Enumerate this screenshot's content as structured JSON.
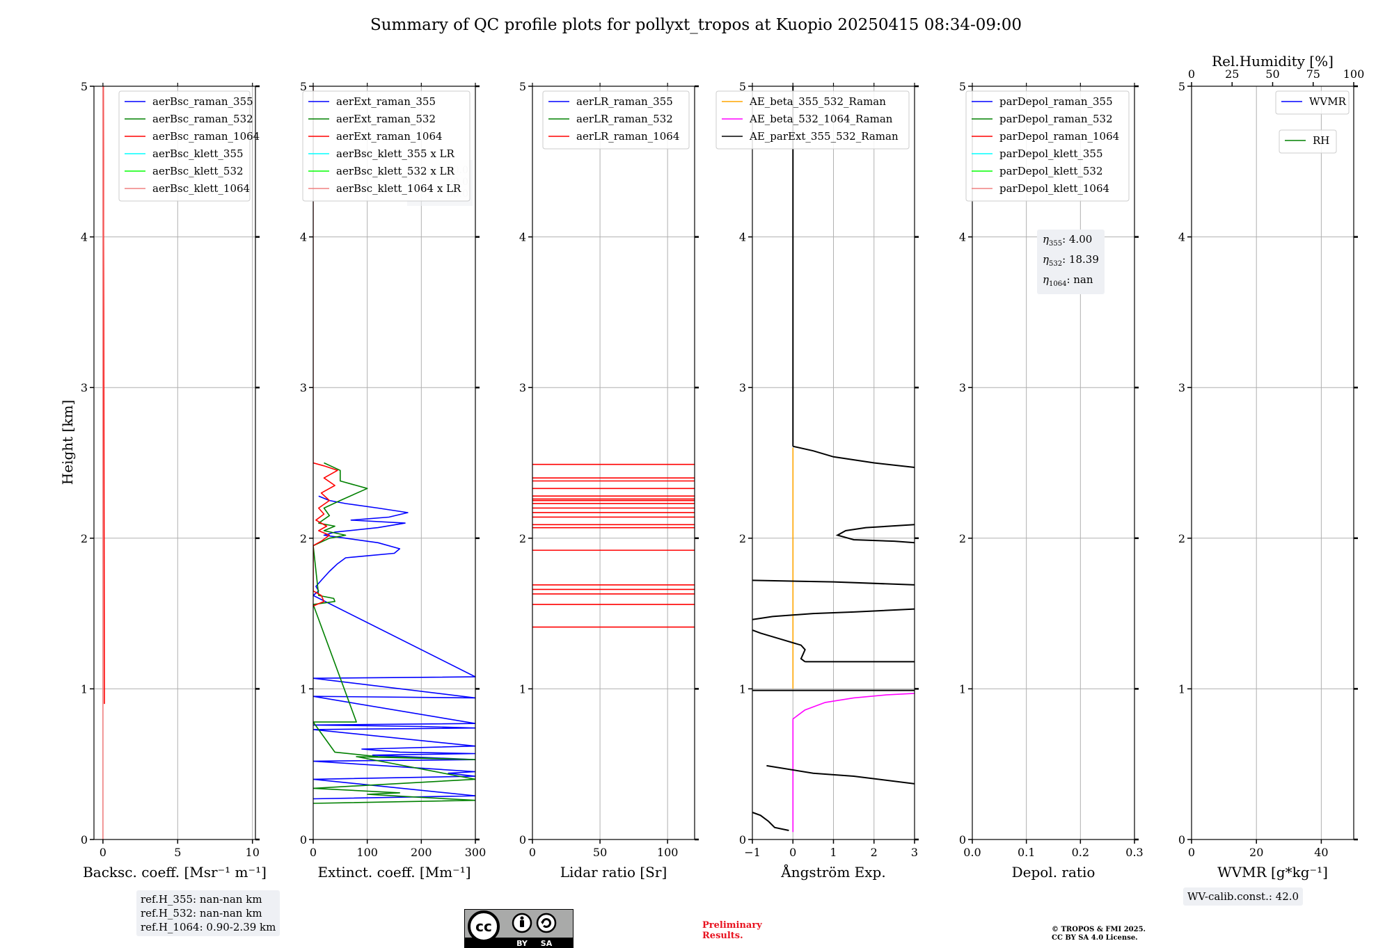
{
  "figure": {
    "title": "Summary of QC profile plots for pollyxt_tropos at Kuopio 20250415 08:34-09:00",
    "ylabel": "Height [km]"
  },
  "notes": {
    "refH": [
      "ref.H_355: nan-nan km",
      "ref.H_532: nan-nan km",
      "ref.H_1064: 0.90-2.39 km"
    ],
    "wv_calib": "WV-calib.const.: 42.0",
    "preliminary": [
      "Preliminary",
      "Results."
    ],
    "copyright": [
      "© TROPOS & FMI 2025.",
      "CC BY SA 4.0 License."
    ],
    "cc_badge": {
      "cc": "cc",
      "by": "BY",
      "sa": "SA"
    },
    "eta": [
      {
        "sym": "η",
        "sub": "355",
        "val": ": 4.00"
      },
      {
        "sym": "η",
        "sub": "532",
        "val": ": 18.39"
      },
      {
        "sym": "η",
        "sub": "1064",
        "val": ": nan"
      }
    ],
    "ext_ghost_lines": [
      "0.0",
      "00.0",
      "00.0"
    ]
  },
  "colors": {
    "blue": "#0000ff",
    "green": "#008000",
    "red": "#ff0000",
    "cyan": "#00ffff",
    "lime": "#00ff00",
    "salmon": "#f08080",
    "orange": "#ffa500",
    "magenta": "#ff00ff",
    "black": "#000000"
  },
  "chart_data": [
    {
      "type": "line",
      "xlabel": "Backsc. coeff. [Msr⁻¹ m⁻¹]",
      "xlim": [
        -0.6,
        10.2
      ],
      "ylim": [
        0,
        5
      ],
      "xticks": [
        0,
        5,
        10
      ],
      "xtick_labels": [
        "0",
        "5",
        "10"
      ],
      "yticks": [
        0,
        1,
        2,
        3,
        4,
        5
      ],
      "legend_position": "top-right",
      "series": [
        {
          "name": "aerBsc_raman_355",
          "color": "#0000ff",
          "points": []
        },
        {
          "name": "aerBsc_raman_532",
          "color": "#008000",
          "points": []
        },
        {
          "name": "aerBsc_raman_1064",
          "color": "#ff0000",
          "points": [
            [
              0.1,
              0.9
            ],
            [
              0.1,
              1.0
            ],
            [
              0.09,
              1.5
            ],
            [
              0.08,
              2.0
            ],
            [
              0.07,
              2.5
            ],
            [
              0.06,
              3.0
            ],
            [
              0.05,
              3.5
            ],
            [
              0.04,
              4.0
            ],
            [
              0.04,
              4.5
            ],
            [
              0.03,
              5.0
            ]
          ]
        },
        {
          "name": "aerBsc_klett_355",
          "color": "#00ffff",
          "points": []
        },
        {
          "name": "aerBsc_klett_532",
          "color": "#00ff00",
          "points": []
        },
        {
          "name": "aerBsc_klett_1064",
          "color": "#f08080",
          "points": [
            [
              0.0,
              0.0
            ],
            [
              0.0,
              5.0
            ]
          ]
        }
      ]
    },
    {
      "type": "line",
      "xlabel": "Extinct. coeff. [Mm⁻¹]",
      "xlim": [
        0,
        300
      ],
      "ylim": [
        0,
        5
      ],
      "xticks": [
        0,
        100,
        200,
        300
      ],
      "xtick_labels": [
        "0",
        "100",
        "200",
        "300"
      ],
      "yticks": [
        0,
        1,
        2,
        3,
        4,
        5
      ],
      "legend_position": "top-right",
      "series": [
        {
          "name": "aerExt_raman_355",
          "color": "#0000ff",
          "points": [
            [
              0,
              0.27
            ],
            [
              300,
              0.29
            ],
            [
              0,
              0.4
            ],
            [
              300,
              0.42
            ],
            [
              250,
              0.44
            ],
            [
              300,
              0.45
            ],
            [
              0,
              0.52
            ],
            [
              300,
              0.53
            ],
            [
              110,
              0.56
            ],
            [
              300,
              0.57
            ],
            [
              160,
              0.58
            ],
            [
              90,
              0.6
            ],
            [
              300,
              0.62
            ],
            [
              0,
              0.73
            ],
            [
              300,
              0.74
            ],
            [
              200,
              0.75
            ],
            [
              0,
              0.76
            ],
            [
              300,
              0.77
            ],
            [
              0,
              0.95
            ],
            [
              300,
              0.94
            ],
            [
              0,
              1.07
            ],
            [
              300,
              1.08
            ],
            [
              0,
              1.62
            ],
            [
              10,
              1.65
            ],
            [
              5,
              1.68
            ],
            [
              15,
              1.72
            ],
            [
              30,
              1.78
            ],
            [
              45,
              1.83
            ],
            [
              60,
              1.87
            ],
            [
              90,
              1.88
            ],
            [
              150,
              1.9
            ],
            [
              160,
              1.93
            ],
            [
              120,
              1.97
            ],
            [
              60,
              2.0
            ],
            [
              20,
              2.02
            ],
            [
              40,
              2.04
            ],
            [
              120,
              2.07
            ],
            [
              170,
              2.1
            ],
            [
              70,
              2.12
            ],
            [
              140,
              2.14
            ],
            [
              175,
              2.17
            ],
            [
              120,
              2.2
            ],
            [
              60,
              2.23
            ],
            [
              30,
              2.25
            ],
            [
              10,
              2.28
            ]
          ]
        },
        {
          "name": "aerExt_raman_532",
          "color": "#008000",
          "points": [
            [
              0,
              0.24
            ],
            [
              300,
              0.26
            ],
            [
              200,
              0.28
            ],
            [
              100,
              0.3
            ],
            [
              160,
              0.31
            ],
            [
              0,
              0.34
            ],
            [
              300,
              0.4
            ],
            [
              80,
              0.55
            ],
            [
              300,
              0.53
            ],
            [
              120,
              0.55
            ],
            [
              40,
              0.58
            ],
            [
              0,
              0.78
            ],
            [
              80,
              0.78
            ],
            [
              0,
              1.56
            ],
            [
              40,
              1.58
            ],
            [
              38,
              1.6
            ],
            [
              10,
              1.62
            ],
            [
              0,
              1.95
            ],
            [
              30,
              2.0
            ],
            [
              60,
              2.02
            ],
            [
              20,
              2.05
            ],
            [
              40,
              2.08
            ],
            [
              10,
              2.1
            ],
            [
              30,
              2.15
            ],
            [
              20,
              2.2
            ],
            [
              50,
              2.25
            ],
            [
              100,
              2.33
            ],
            [
              50,
              2.38
            ],
            [
              50,
              2.45
            ],
            [
              20,
              2.5
            ]
          ]
        },
        {
          "name": "aerExt_raman_1064",
          "color": "#ff0000",
          "points": [
            [
              0,
              1.55
            ],
            [
              20,
              1.58
            ],
            [
              15,
              1.62
            ],
            [
              0,
              1.65
            ],
            [
              0,
              1.95
            ],
            [
              15,
              1.98
            ],
            [
              30,
              2.02
            ],
            [
              10,
              2.05
            ],
            [
              25,
              2.08
            ],
            [
              5,
              2.12
            ],
            [
              20,
              2.16
            ],
            [
              10,
              2.2
            ],
            [
              30,
              2.25
            ],
            [
              15,
              2.3
            ],
            [
              40,
              2.35
            ],
            [
              20,
              2.4
            ],
            [
              45,
              2.45
            ],
            [
              20,
              2.48
            ],
            [
              0,
              2.5
            ]
          ]
        },
        {
          "name": "aerBsc_klett_355 x LR",
          "color": "#00ffff",
          "points": []
        },
        {
          "name": "aerBsc_klett_532 x LR",
          "color": "#00ff00",
          "points": []
        },
        {
          "name": "aerBsc_klett_1064 x LR",
          "color": "#f08080",
          "points": [
            [
              0,
              2.5
            ],
            [
              0,
              5.0
            ]
          ]
        }
      ]
    },
    {
      "type": "line",
      "xlabel": "Lidar ratio [Sr]",
      "xlim": [
        0,
        120
      ],
      "ylim": [
        0,
        5
      ],
      "xticks": [
        0,
        50,
        100
      ],
      "xtick_labels": [
        "0",
        "50",
        "100"
      ],
      "yticks": [
        0,
        1,
        2,
        3,
        4,
        5
      ],
      "legend_position": "top-right",
      "series": [
        {
          "name": "aerLR_raman_355",
          "color": "#0000ff",
          "points": []
        },
        {
          "name": "aerLR_raman_532",
          "color": "#008000",
          "points": []
        },
        {
          "name": "aerLR_raman_1064",
          "color": "#ff0000",
          "hlines": [
            1.41,
            1.56,
            1.63,
            1.66,
            1.69,
            1.92,
            2.07,
            2.09,
            2.14,
            2.17,
            2.2,
            2.23,
            2.25,
            2.26,
            2.28,
            2.33,
            2.38,
            2.4,
            2.49
          ]
        }
      ]
    },
    {
      "type": "line",
      "xlabel": "Ångström Exp.",
      "xlim": [
        -1,
        3
      ],
      "ylim": [
        0,
        5
      ],
      "xticks": [
        -1,
        0,
        1,
        2,
        3
      ],
      "xtick_labels": [
        "−1",
        "0",
        "1",
        "2",
        "3"
      ],
      "yticks": [
        0,
        1,
        2,
        3,
        4,
        5
      ],
      "legend_position": "top-right",
      "series": [
        {
          "name": "AE_beta_355_532_Raman",
          "color": "#ffa500",
          "points": [
            [
              0,
              1.0
            ],
            [
              0,
              2.6
            ]
          ]
        },
        {
          "name": "AE_beta_532_1064_Raman",
          "color": "#ff00ff",
          "points": [
            [
              0,
              0.05
            ],
            [
              0,
              0.8
            ],
            [
              0.3,
              0.86
            ],
            [
              0.8,
              0.91
            ],
            [
              1.5,
              0.94
            ],
            [
              2.3,
              0.96
            ],
            [
              3,
              0.97
            ]
          ]
        },
        {
          "name": "AE_parExt_355_532_Raman",
          "color": "#000000",
          "segments": [
            [
              [
                -1,
                0.18
              ],
              [
                -0.8,
                0.16
              ],
              [
                -0.6,
                0.12
              ],
              [
                -0.45,
                0.08
              ],
              [
                -0.1,
                0.06
              ]
            ],
            [
              [
                -0.65,
                0.49
              ],
              [
                0.5,
                0.44
              ],
              [
                1.5,
                0.42
              ],
              [
                3,
                0.37
              ]
            ],
            [
              [
                -1,
                0.99
              ],
              [
                3,
                0.99
              ]
            ],
            [
              [
                0.3,
                1.18
              ],
              [
                3,
                1.18
              ]
            ],
            [
              [
                0.3,
                1.18
              ],
              [
                0.2,
                1.2
              ],
              [
                0.3,
                1.26
              ],
              [
                0.2,
                1.29
              ],
              [
                -0.3,
                1.33
              ],
              [
                -0.8,
                1.37
              ],
              [
                -1,
                1.39
              ]
            ],
            [
              [
                -1,
                1.46
              ],
              [
                -0.5,
                1.48
              ],
              [
                0.5,
                1.5
              ],
              [
                1.5,
                1.51
              ],
              [
                3,
                1.53
              ]
            ],
            [
              [
                -1,
                1.72
              ],
              [
                1,
                1.71
              ],
              [
                3,
                1.69
              ]
            ],
            [
              [
                3,
                1.97
              ],
              [
                2.5,
                1.98
              ],
              [
                1.5,
                1.99
              ],
              [
                1.1,
                2.02
              ],
              [
                1.3,
                2.05
              ],
              [
                1.8,
                2.07
              ],
              [
                3,
                2.09
              ]
            ],
            [
              [
                3,
                2.47
              ],
              [
                2,
                2.5
              ],
              [
                1,
                2.54
              ],
              [
                0.5,
                2.58
              ],
              [
                0,
                2.61
              ]
            ],
            [
              [
                0,
                2.61
              ],
              [
                0,
                5.0
              ]
            ]
          ]
        }
      ]
    },
    {
      "type": "line",
      "xlabel": "Depol. ratio",
      "xlim": [
        0,
        0.3
      ],
      "ylim": [
        0,
        5
      ],
      "xticks": [
        0,
        0.1,
        0.2,
        0.3
      ],
      "xtick_labels": [
        "0.0",
        "0.1",
        "0.2",
        "0.3"
      ],
      "yticks": [
        0,
        1,
        2,
        3,
        4,
        5
      ],
      "legend_position": "top-right",
      "series": [
        {
          "name": "parDepol_raman_355",
          "color": "#0000ff",
          "points": []
        },
        {
          "name": "parDepol_raman_532",
          "color": "#008000",
          "points": []
        },
        {
          "name": "parDepol_raman_1064",
          "color": "#ff0000",
          "points": []
        },
        {
          "name": "parDepol_klett_355",
          "color": "#00ffff",
          "points": []
        },
        {
          "name": "parDepol_klett_532",
          "color": "#00ff00",
          "points": []
        },
        {
          "name": "parDepol_klett_1064",
          "color": "#f08080",
          "points": []
        }
      ]
    },
    {
      "type": "line",
      "xlabel": "WVMR [g*kg⁻¹]",
      "xlim": [
        0,
        50
      ],
      "ylim": [
        0,
        5
      ],
      "xticks": [
        0,
        20,
        40
      ],
      "xtick_labels": [
        "0",
        "20",
        "40"
      ],
      "yticks": [
        0,
        1,
        2,
        3,
        4,
        5
      ],
      "top_xlabel": "Rel.Humidity [%]",
      "top_xlim": [
        0,
        100
      ],
      "top_xticks": [
        0,
        25,
        50,
        75,
        100
      ],
      "top_xtick_labels": [
        "0",
        "25",
        "50",
        "75",
        "100"
      ],
      "legend_position": "top-right",
      "series": [
        {
          "name": "WVMR",
          "color": "#0000ff",
          "points": []
        },
        {
          "name": "RH",
          "color": "#008000",
          "points": []
        }
      ]
    }
  ]
}
